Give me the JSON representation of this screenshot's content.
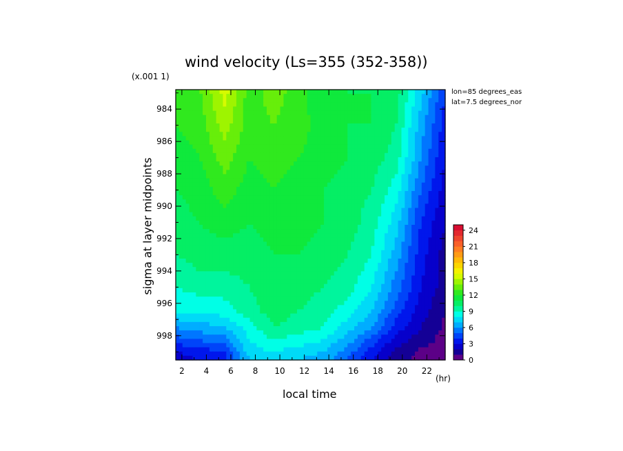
{
  "chart_data": {
    "type": "heatmap",
    "title": "wind velocity (Ls=355 (352-358))",
    "scale_note": "(x.001 1)",
    "xlabel": "local time",
    "xunit": "(hr)",
    "ylabel": "sigma at layer midpoints",
    "annotations": [
      "lon=85 degrees_eas",
      "lat=7.5 degrees_nor"
    ],
    "x": [
      1.5,
      3.5,
      5.5,
      7.5,
      9.5,
      11.5,
      13.5,
      15.5,
      17.5,
      19.5,
      21.5,
      23.5
    ],
    "y": [
      982.8,
      985,
      987,
      989,
      991,
      993,
      995,
      996.5,
      997.5,
      998.3,
      999.0,
      999.5
    ],
    "z": [
      [
        12.5,
        13.0,
        15.5,
        12.5,
        13.5,
        12.5,
        11.0,
        11.0,
        11.0,
        10.5,
        7.5,
        4.0
      ],
      [
        12.0,
        12.5,
        14.5,
        12.5,
        13.0,
        12.5,
        11.5,
        11.0,
        11.0,
        10.0,
        6.5,
        3.5
      ],
      [
        11.5,
        12.0,
        13.5,
        12.0,
        12.5,
        12.0,
        11.5,
        11.0,
        10.5,
        9.5,
        6.0,
        3.0
      ],
      [
        11.0,
        11.5,
        12.5,
        11.5,
        12.0,
        11.5,
        11.0,
        10.5,
        10.0,
        8.5,
        5.0,
        2.5
      ],
      [
        10.5,
        11.0,
        11.5,
        11.0,
        11.5,
        11.5,
        11.0,
        10.5,
        9.5,
        7.5,
        4.0,
        2.0
      ],
      [
        10.0,
        10.5,
        10.5,
        10.5,
        11.0,
        11.0,
        10.5,
        10.0,
        9.0,
        6.5,
        3.5,
        1.5
      ],
      [
        9.0,
        9.5,
        9.5,
        10.0,
        11.0,
        10.5,
        10.0,
        9.5,
        8.0,
        5.5,
        3.0,
        1.5
      ],
      [
        8.0,
        8.0,
        8.5,
        9.5,
        10.5,
        10.0,
        9.5,
        8.5,
        7.0,
        4.5,
        2.5,
        1.0
      ],
      [
        6.0,
        6.5,
        7.0,
        8.5,
        10.0,
        9.5,
        9.0,
        7.5,
        6.0,
        3.5,
        2.0,
        0.8
      ],
      [
        4.5,
        5.0,
        5.5,
        8.0,
        9.0,
        8.5,
        8.0,
        6.5,
        4.5,
        2.5,
        1.5,
        0.6
      ],
      [
        3.0,
        3.5,
        4.0,
        7.5,
        8.0,
        7.5,
        7.0,
        5.5,
        3.5,
        1.8,
        0.8,
        0.4
      ],
      [
        2.5,
        3.0,
        3.5,
        7.0,
        7.5,
        7.0,
        6.5,
        5.0,
        3.0,
        1.5,
        0.5,
        0.3
      ]
    ],
    "xlim": [
      1.5,
      23.5
    ],
    "ylim": [
      982.8,
      999.5
    ],
    "y_inverted": true,
    "xticks": [
      2,
      4,
      6,
      8,
      10,
      12,
      14,
      16,
      18,
      20,
      22
    ],
    "yticks": [
      984,
      986,
      988,
      990,
      992,
      994,
      996,
      998
    ],
    "colorbar": {
      "range": [
        0,
        25
      ],
      "levels": 25,
      "ticks": [
        0,
        3,
        6,
        9,
        12,
        15,
        18,
        21,
        24
      ],
      "placement": "right"
    }
  }
}
